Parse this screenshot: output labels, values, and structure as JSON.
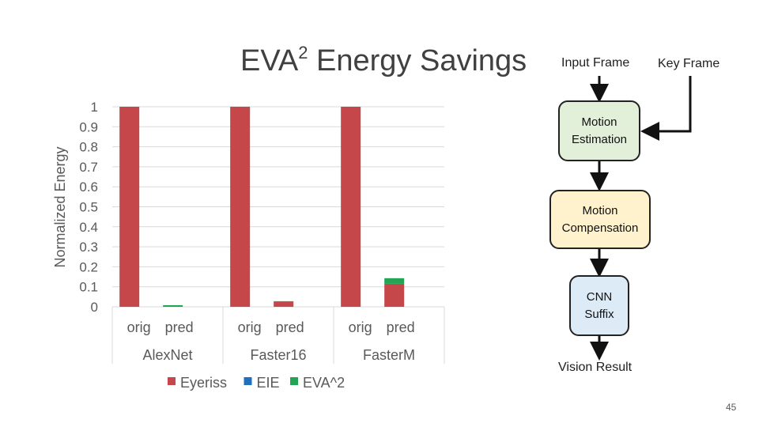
{
  "chart_data": {
    "type": "bar",
    "title_main": "EVA",
    "title_sup": "2",
    "title_rest": " Energy Savings",
    "ylabel": "Normalized Energy",
    "ylim": [
      0,
      1
    ],
    "yticks": [
      "0",
      "0.1",
      "0.2",
      "0.3",
      "0.4",
      "0.5",
      "0.6",
      "0.7",
      "0.8",
      "0.9",
      "1"
    ],
    "groups": [
      "AlexNet",
      "Faster16",
      "FasterM"
    ],
    "categories": [
      "orig",
      "pred",
      "orig",
      "pred",
      "orig",
      "pred"
    ],
    "stacked": true,
    "series": [
      {
        "name": "Eyeriss",
        "color": "#c5474a",
        "values": [
          1,
          0,
          1,
          0.025,
          1,
          0.115
        ]
      },
      {
        "name": "EIE",
        "color": "#1f6fbf",
        "values": [
          0,
          0,
          0,
          0,
          0,
          0
        ]
      },
      {
        "name": "EVA^2",
        "color": "#23a455",
        "values": [
          0,
          0.008,
          0,
          0.003,
          0,
          0.028
        ]
      }
    ]
  },
  "flowchart": {
    "input_frame": "Input Frame",
    "key_frame": "Key Frame",
    "motion_estimation": "Motion Estimation",
    "motion_compensation": "Motion Compensation",
    "cnn_suffix": "CNN Suffix",
    "vision_result": "Vision Result"
  },
  "page_number": "45"
}
